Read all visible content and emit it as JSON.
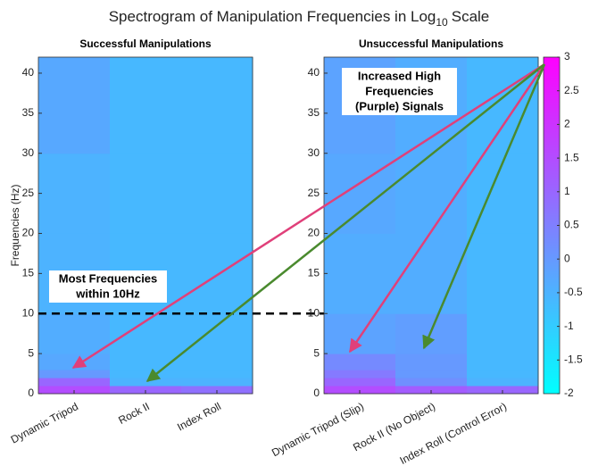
{
  "title": {
    "text": "Spectrogram of Manipulation Frequencies in Log",
    "subscript": "10",
    "suffix": "Scale"
  },
  "chart_data": [
    {
      "type": "heatmap",
      "title": "Successful Manipulations",
      "ylabel": "Frequencies (Hz)",
      "categories": [
        "Dynamic Tripod",
        "Rock II",
        "Index Roll"
      ],
      "ybins": [
        0,
        1,
        2,
        3,
        5,
        10,
        20,
        30,
        42
      ],
      "values": [
        [
          1.5,
          1.0,
          0.0,
          -0.3,
          -0.4,
          -0.5,
          -0.5,
          -0.3
        ],
        [
          1.0,
          -0.5,
          -0.6,
          -0.6,
          -0.6,
          -0.6,
          -0.6,
          -0.6
        ],
        [
          0.8,
          -0.5,
          -0.6,
          -0.6,
          -0.6,
          -0.6,
          -0.6,
          -0.6
        ]
      ],
      "ylim": [
        0,
        42
      ],
      "yticks": [
        0,
        5,
        10,
        15,
        20,
        25,
        30,
        35,
        40
      ],
      "reference_line": 10,
      "annotation": [
        "Most Frequencies",
        "within 10Hz"
      ]
    },
    {
      "type": "heatmap",
      "title": "Unsuccessful Manipulations",
      "categories": [
        "Dynamic Tripod (Slip)",
        "Rock II (No Object)",
        "Index Roll (Control Error)"
      ],
      "ybins": [
        0,
        1,
        2,
        3,
        5,
        10,
        20,
        30,
        42
      ],
      "values": [
        [
          1.5,
          1.0,
          0.6,
          0.3,
          -0.2,
          -0.4,
          -0.3,
          -0.2
        ],
        [
          1.2,
          0.2,
          0.0,
          0.0,
          -0.1,
          -0.4,
          -0.4,
          -0.4
        ],
        [
          1.0,
          -0.5,
          -0.6,
          -0.6,
          -0.6,
          -0.6,
          -0.6,
          -0.6
        ]
      ],
      "ylim": [
        0,
        42
      ],
      "yticks": [
        0,
        5,
        10,
        15,
        20,
        25,
        30,
        35,
        40
      ],
      "annotation": [
        "Increased High",
        "Frequencies",
        "(Purple) Signals"
      ],
      "clim": [
        -2,
        3
      ],
      "cticks": [
        -2,
        -1.5,
        -1,
        -0.5,
        0,
        0.5,
        1,
        1.5,
        2,
        2.5,
        3
      ],
      "colormap": [
        "#00ffff",
        "#ff00ff"
      ]
    }
  ]
}
